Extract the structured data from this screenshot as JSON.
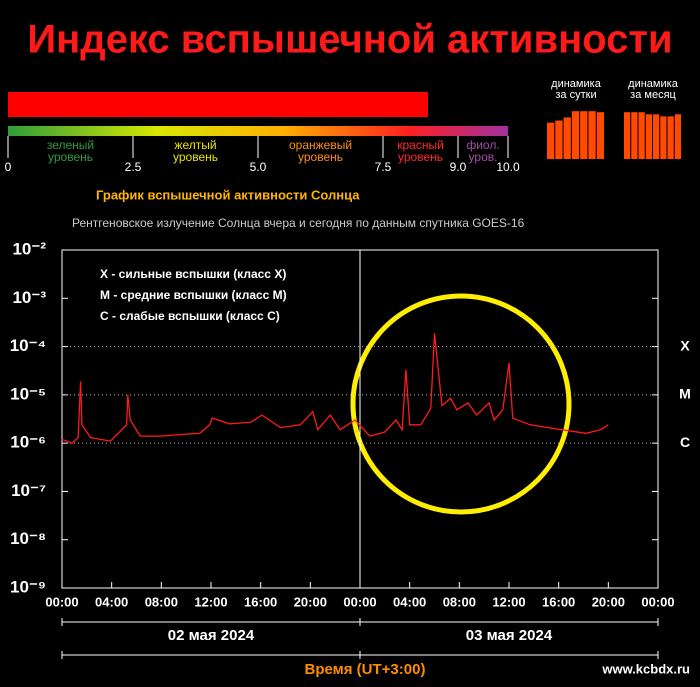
{
  "title": "Индекс вспышечной активности",
  "index": {
    "value": 8.4,
    "color": "#ff0000",
    "scale": [
      0,
      10
    ],
    "ticks": [
      0,
      2.5,
      {
        "value": 5,
        "label": "5.0"
      },
      7.5,
      {
        "value": 9,
        "label": "9.0"
      },
      {
        "value": 10,
        "label": "10.0"
      }
    ],
    "zones": [
      {
        "lines": [
          "зеленый",
          "уровень"
        ],
        "color": "#2e9e3a"
      },
      {
        "lines": [
          "желтый",
          "уровень"
        ],
        "color": "#e6e600"
      },
      {
        "lines": [
          "оранжевый",
          "уровень"
        ],
        "color": "#ff8c1a"
      },
      {
        "lines": [
          "красный",
          "уровень"
        ],
        "color": "#ff2a2a"
      },
      {
        "lines": [
          "фиол.",
          "уров."
        ],
        "color": "#a64ca6"
      }
    ]
  },
  "chart_data": [
    {
      "type": "bar",
      "title_lines": [
        "динамика",
        "за сутки"
      ],
      "values": [
        7.0,
        7.4,
        8.0,
        9.2,
        9.2,
        9.2,
        9.0
      ],
      "color": "#ff4a00",
      "ylim": [
        0,
        10
      ]
    },
    {
      "type": "bar",
      "title_lines": [
        "динамика",
        "за месяц"
      ],
      "values": [
        9.0,
        9.0,
        9.0,
        8.6,
        8.6,
        8.2,
        8.2,
        8.6
      ],
      "color": "#ff4a00",
      "ylim": [
        0,
        10
      ]
    },
    {
      "type": "line",
      "title": "График вспышечной активности Солнца",
      "subtitle": "Рентгеновское излучение Солнца вчера и сегодня по данным спутника GOES-16",
      "x": [
        0,
        0.8,
        1.3,
        1.5,
        1.6,
        2.3,
        3.9,
        5.2,
        5.3,
        5.5,
        6.3,
        7.9,
        9.5,
        11.1,
        11.9,
        12.1,
        13.5,
        15.2,
        16.1,
        17.6,
        19.2,
        20.2,
        20.6,
        21.6,
        22.4,
        23.6,
        24.8,
        26.0,
        26.9,
        27.4,
        27.7,
        28.0,
        28.9,
        29.7,
        30.0,
        30.3,
        30.6,
        31.3,
        31.8,
        32.7,
        33.4,
        34.4,
        34.8,
        35.5,
        36.0,
        36.3,
        37.7,
        40.2,
        42.2,
        43.4,
        44.0
      ],
      "values": [
        1.2e-06,
        1e-06,
        1.3e-06,
        1.9e-05,
        2.4e-06,
        1.3e-06,
        1.1e-06,
        2.4e-06,
        1e-05,
        3e-06,
        1.4e-06,
        1.4e-06,
        1.5e-06,
        1.6e-06,
        2.4e-06,
        3.3e-06,
        2.5e-06,
        2.7e-06,
        3.8e-06,
        2.1e-06,
        2.4e-06,
        4.5e-06,
        1.9e-06,
        3.8e-06,
        1.9e-06,
        3e-06,
        1.4e-06,
        1.7e-06,
        3e-06,
        1.9e-06,
        3.3e-05,
        2.4e-06,
        2.4e-06,
        5.3e-06,
        0.00019,
        3.3e-05,
        6e-06,
        8.5e-06,
        4.9e-06,
        6.8e-06,
        3.8e-06,
        6.8e-06,
        3e-06,
        4.9e-06,
        4.6e-05,
        3.3e-06,
        2.4e-06,
        1.9e-06,
        1.6e-06,
        1.9e-06,
        2.4e-06
      ],
      "color": "#ff1a1a",
      "xlim": [
        0,
        48
      ],
      "xticks": [
        {
          "value": 0,
          "label": "00:00"
        },
        {
          "value": 4,
          "label": "04:00"
        },
        {
          "value": 8,
          "label": "08:00"
        },
        {
          "value": 12,
          "label": "12:00"
        },
        {
          "value": 16,
          "label": "16:00"
        },
        {
          "value": 20,
          "label": "20:00"
        },
        {
          "value": 24,
          "label": "00:00"
        },
        {
          "value": 28,
          "label": "04:00"
        },
        {
          "value": 32,
          "label": "08:00"
        },
        {
          "value": 36,
          "label": "12:00"
        },
        {
          "value": 40,
          "label": "16:00"
        },
        {
          "value": 44,
          "label": "20:00"
        },
        {
          "value": 48,
          "label": "00:00"
        }
      ],
      "ylim": [
        1e-09,
        0.01
      ],
      "yticks": [
        {
          "value": 0.01,
          "label": "10⁻²"
        },
        {
          "value": 0.001,
          "label": "10⁻³"
        },
        {
          "value": 0.0001,
          "label": "10⁻⁴"
        },
        {
          "value": 1e-05,
          "label": "10⁻⁵"
        },
        {
          "value": 1e-06,
          "label": "10⁻⁶"
        },
        {
          "value": 1e-07,
          "label": "10⁻⁷"
        },
        {
          "value": 1e-08,
          "label": "10⁻⁸"
        },
        {
          "value": 1e-09,
          "label": "10⁻⁹"
        }
      ],
      "log_scale": true,
      "class_levels": [
        {
          "value": 0.0001,
          "label": "X"
        },
        {
          "value": 1e-05,
          "label": "M"
        },
        {
          "value": 1e-06,
          "label": "C"
        }
      ],
      "notes": [
        "X - сильные вспышки (класс X)",
        "M - средние вспышки (класс M)",
        "C - слабые вспышки (класс C)"
      ],
      "dates": [
        "02 мая 2024",
        "03 мая 2024"
      ],
      "xlabel": "Время (UT+3:00)"
    }
  ],
  "footer": {
    "site": "www.kcbdx.ru"
  }
}
